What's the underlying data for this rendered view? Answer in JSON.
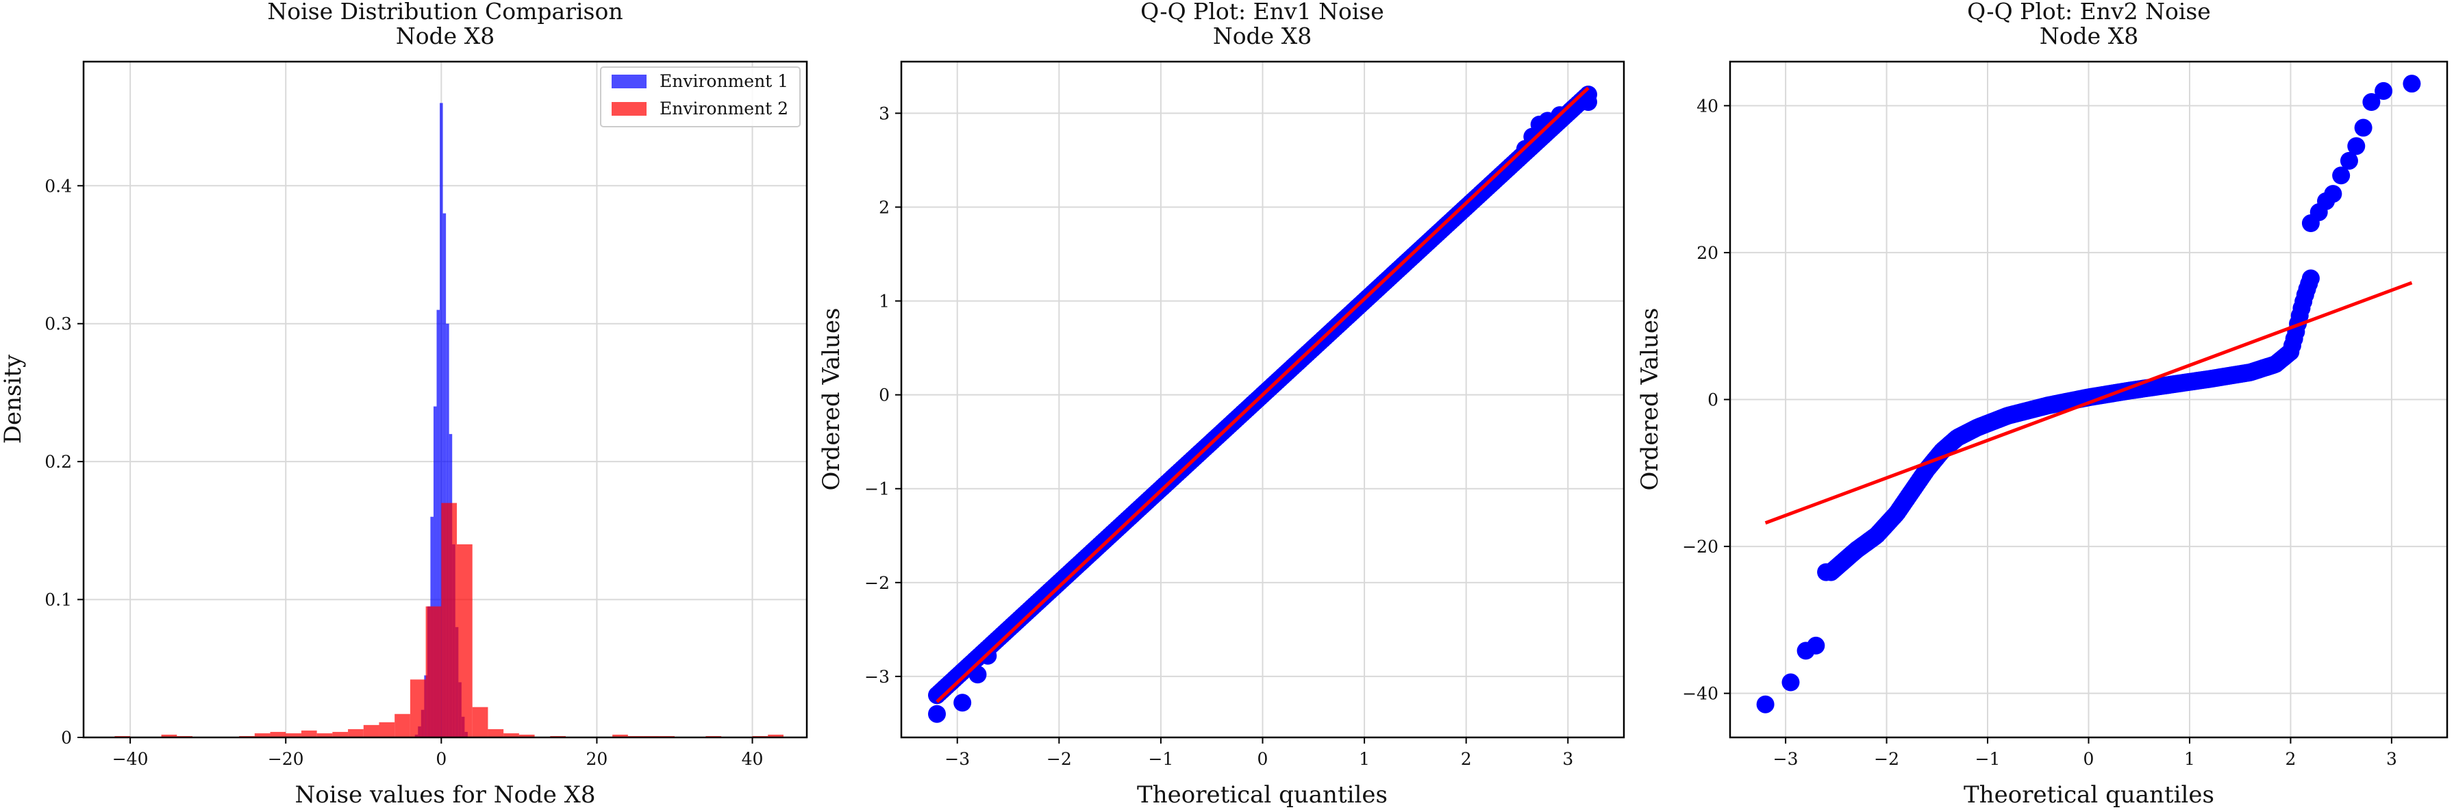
{
  "chart_data": [
    {
      "type": "histogram",
      "title": "Noise Distribution Comparison",
      "subtitle": "Node X8",
      "xlabel": "Noise values for Node X8",
      "ylabel": "Density",
      "xlim": [
        -46,
        47
      ],
      "ylim": [
        0,
        0.49
      ],
      "xticks": [
        -40,
        -20,
        0,
        20,
        40
      ],
      "yticks": [
        0.0,
        0.1,
        0.2,
        0.3,
        0.4
      ],
      "grid": true,
      "legend": "top-right",
      "series": [
        {
          "name": "Environment 1",
          "color": "#0000ff",
          "alpha": 0.7,
          "bins": [
            [
              -3.4,
              -3.0,
              0.002
            ],
            [
              -3.0,
              -2.6,
              0.008
            ],
            [
              -2.6,
              -2.2,
              0.02
            ],
            [
              -2.2,
              -1.8,
              0.045
            ],
            [
              -1.8,
              -1.4,
              0.095
            ],
            [
              -1.4,
              -1.0,
              0.16
            ],
            [
              -1.0,
              -0.6,
              0.24
            ],
            [
              -0.6,
              -0.2,
              0.31
            ],
            [
              -0.2,
              0.2,
              0.46
            ],
            [
              0.2,
              0.6,
              0.38
            ],
            [
              0.6,
              1.0,
              0.3
            ],
            [
              1.0,
              1.4,
              0.22
            ],
            [
              1.4,
              1.8,
              0.14
            ],
            [
              1.8,
              2.2,
              0.08
            ],
            [
              2.2,
              2.6,
              0.04
            ],
            [
              2.6,
              3.0,
              0.015
            ],
            [
              3.0,
              3.4,
              0.004
            ]
          ]
        },
        {
          "name": "Environment 2",
          "color": "#ff0000",
          "alpha": 0.7,
          "bins": [
            [
              -42,
              -40,
              0.001
            ],
            [
              -36,
              -34,
              0.002
            ],
            [
              -34,
              -32,
              0.001
            ],
            [
              -26,
              -24,
              0.001
            ],
            [
              -24,
              -22,
              0.003
            ],
            [
              -22,
              -20,
              0.004
            ],
            [
              -20,
              -18,
              0.003
            ],
            [
              -18,
              -16,
              0.005
            ],
            [
              -16,
              -14,
              0.003
            ],
            [
              -14,
              -12,
              0.004
            ],
            [
              -12,
              -10,
              0.006
            ],
            [
              -10,
              -8,
              0.009
            ],
            [
              -8,
              -6,
              0.011
            ],
            [
              -6,
              -4,
              0.017
            ],
            [
              -4,
              -2,
              0.042
            ],
            [
              -2,
              0,
              0.095
            ],
            [
              0,
              2,
              0.17
            ],
            [
              2,
              4,
              0.14
            ],
            [
              4,
              6,
              0.022
            ],
            [
              6,
              8,
              0.006
            ],
            [
              8,
              10,
              0.003
            ],
            [
              10,
              12,
              0.002
            ],
            [
              14,
              16,
              0.001
            ],
            [
              22,
              24,
              0.002
            ],
            [
              24,
              26,
              0.001
            ],
            [
              26,
              28,
              0.001
            ],
            [
              28,
              30,
              0.001
            ],
            [
              34,
              36,
              0.001
            ],
            [
              40,
              42,
              0.001
            ],
            [
              42,
              44,
              0.002
            ]
          ]
        }
      ]
    },
    {
      "type": "scatter",
      "title": "Q-Q Plot: Env1 Noise",
      "subtitle": "Node X8",
      "xlabel": "Theoretical quantiles",
      "ylabel": "Ordered Values",
      "xlim": [
        -3.55,
        3.55
      ],
      "ylim": [
        -3.65,
        3.55
      ],
      "xticks": [
        -3,
        -2,
        -1,
        0,
        1,
        2,
        3
      ],
      "yticks": [
        -3,
        -2,
        -1,
        0,
        1,
        2,
        3
      ],
      "grid": true,
      "points": {
        "color": "#0000ff",
        "n": 1000,
        "curve": [
          [
            -3.2,
            -3.2
          ],
          [
            3.2,
            3.2
          ]
        ],
        "outliers": [
          [
            -3.2,
            -3.4
          ],
          [
            -2.95,
            -3.28
          ],
          [
            -2.8,
            -2.98
          ],
          [
            -2.7,
            -2.78
          ],
          [
            2.58,
            2.62
          ],
          [
            2.65,
            2.75
          ],
          [
            2.72,
            2.88
          ],
          [
            2.8,
            2.92
          ],
          [
            2.92,
            2.98
          ],
          [
            3.2,
            3.12
          ]
        ]
      },
      "fit_line": {
        "color": "#ff0000",
        "x": [
          -3.2,
          3.2
        ],
        "y": [
          -3.27,
          3.27
        ]
      }
    },
    {
      "type": "scatter",
      "title": "Q-Q Plot: Env2 Noise",
      "subtitle": "Node X8",
      "xlabel": "Theoretical quantiles",
      "ylabel": "Ordered Values",
      "xlim": [
        -3.55,
        3.55
      ],
      "ylim": [
        -46,
        46
      ],
      "xticks": [
        -3,
        -2,
        -1,
        0,
        1,
        2,
        3
      ],
      "yticks": [
        -40,
        -20,
        0,
        20,
        40
      ],
      "grid": true,
      "points": {
        "color": "#0000ff",
        "n": 1000,
        "curve": [
          [
            -2.55,
            -23.5
          ],
          [
            -2.3,
            -20.5
          ],
          [
            -2.1,
            -18.5
          ],
          [
            -1.9,
            -15.5
          ],
          [
            -1.75,
            -12.5
          ],
          [
            -1.6,
            -9.5
          ],
          [
            -1.45,
            -7
          ],
          [
            -1.3,
            -5.2
          ],
          [
            -1.1,
            -3.8
          ],
          [
            -0.8,
            -2.2
          ],
          [
            -0.4,
            -0.8
          ],
          [
            0.0,
            0.3
          ],
          [
            0.4,
            1.2
          ],
          [
            0.8,
            2.0
          ],
          [
            1.2,
            2.8
          ],
          [
            1.6,
            3.7
          ],
          [
            1.85,
            4.8
          ],
          [
            2.0,
            6.5
          ],
          [
            2.05,
            9
          ],
          [
            2.1,
            12
          ],
          [
            2.15,
            14.5
          ],
          [
            2.2,
            16.5
          ]
        ],
        "outliers": [
          [
            -3.2,
            -41.5
          ],
          [
            -2.95,
            -38.5
          ],
          [
            -2.8,
            -34.2
          ],
          [
            -2.7,
            -33.5
          ],
          [
            -2.6,
            -23.5
          ],
          [
            2.2,
            24
          ],
          [
            2.28,
            25.5
          ],
          [
            2.35,
            27
          ],
          [
            2.42,
            28
          ],
          [
            2.5,
            30.5
          ],
          [
            2.58,
            32.5
          ],
          [
            2.65,
            34.5
          ],
          [
            2.72,
            37
          ],
          [
            2.8,
            40.5
          ],
          [
            2.92,
            42
          ],
          [
            3.2,
            43
          ]
        ]
      },
      "fit_line": {
        "color": "#ff0000",
        "x": [
          -3.2,
          3.2
        ],
        "y": [
          -16.8,
          15.9
        ]
      }
    }
  ]
}
